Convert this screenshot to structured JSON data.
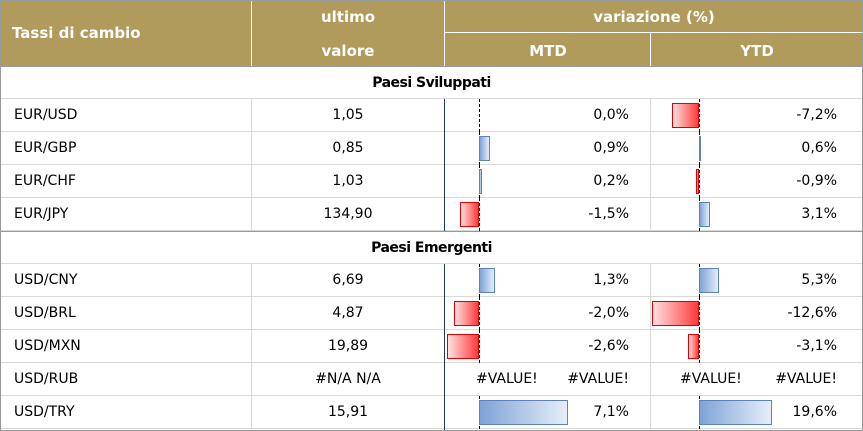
{
  "header": {
    "col1": "Tassi di cambio",
    "col2_line1": "ultimo",
    "col2_line2": "valore",
    "group": "variazione (%)",
    "mtd": "MTD",
    "ytd": "YTD"
  },
  "sections": {
    "developed": "Paesi Sviluppati",
    "emerging": "Paesi Emergenti"
  },
  "rows": [
    {
      "pair": "EUR/USD",
      "value": "1,05",
      "mtd": "0,0%",
      "ytd": "-7,2%",
      "mtd_num": 0.0,
      "ytd_num": -7.2
    },
    {
      "pair": "EUR/GBP",
      "value": "0,85",
      "mtd": "0,9%",
      "ytd": "0,6%",
      "mtd_num": 0.9,
      "ytd_num": 0.6
    },
    {
      "pair": "EUR/CHF",
      "value": "1,03",
      "mtd": "0,2%",
      "ytd": "-0,9%",
      "mtd_num": 0.2,
      "ytd_num": -0.9
    },
    {
      "pair": "EUR/JPY",
      "value": "134,90",
      "mtd": "-1,5%",
      "ytd": "3,1%",
      "mtd_num": -1.5,
      "ytd_num": 3.1
    },
    {
      "pair": "USD/CNY",
      "value": "6,69",
      "mtd": "1,3%",
      "ytd": "5,3%",
      "mtd_num": 1.3,
      "ytd_num": 5.3
    },
    {
      "pair": "USD/BRL",
      "value": "4,87",
      "mtd": "-2,0%",
      "ytd": "-12,6%",
      "mtd_num": -2.0,
      "ytd_num": -12.6
    },
    {
      "pair": "USD/MXN",
      "value": "19,89",
      "mtd": "-2,6%",
      "ytd": "-3,1%",
      "mtd_num": -2.6,
      "ytd_num": -3.1
    },
    {
      "pair": "USD/RUB",
      "value": "#N/A N/A",
      "mtd_bar": "#VALUE!",
      "mtd": "#VALUE!",
      "ytd_bar": "#VALUE!",
      "ytd": "#VALUE!"
    },
    {
      "pair": "USD/TRY",
      "value": "15,91",
      "mtd": "7,1%",
      "ytd": "19,6%",
      "mtd_num": 7.1,
      "ytd_num": 19.6
    }
  ]
}
